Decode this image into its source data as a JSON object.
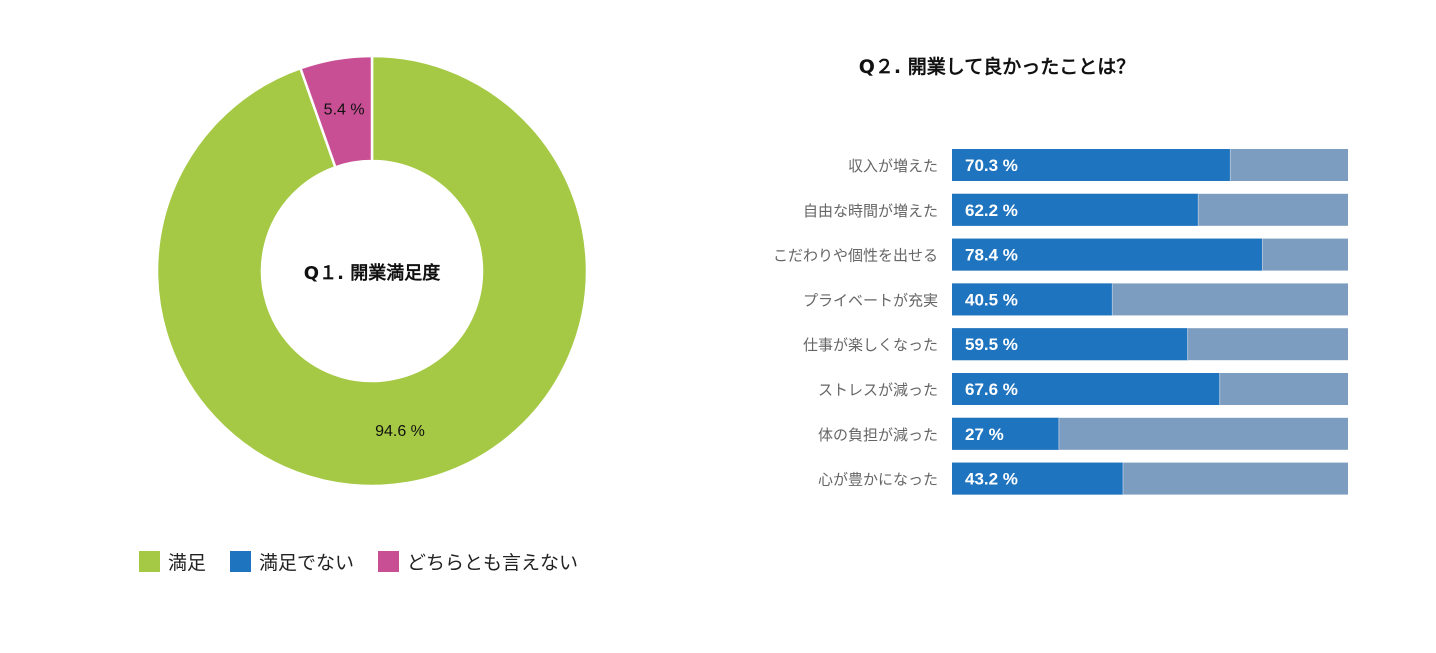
{
  "chart_data": [
    {
      "type": "pie",
      "style": "donut",
      "title": "Q１. 開業満足度",
      "categories": [
        "満足",
        "満足でない",
        "どちらとも言えない"
      ],
      "values": [
        94.6,
        0,
        5.4
      ],
      "data_labels": [
        "94.6 %",
        "",
        "5.4 %"
      ],
      "colors": [
        "#a5c945",
        "#1f74bf",
        "#c94f95"
      ],
      "legend": "bottom"
    },
    {
      "type": "bar",
      "orientation": "horizontal",
      "stacked": true,
      "title": "Q２. 開業して良かったことは？",
      "categories": [
        "収入が増えた",
        "自由な時間が増えた",
        "こだわりや個性を出せる",
        "プライベートが充実",
        "仕事が楽しくなった",
        "ストレスが減った",
        "体の負担が減った",
        "心が豊かになった"
      ],
      "values": [
        70.3,
        62.2,
        78.4,
        40.5,
        59.5,
        67.6,
        27,
        43.2
      ],
      "data_labels": [
        "70.3 %",
        "62.2 %",
        "78.4 %",
        "40.5 %",
        "59.5 %",
        "67.6 %",
        "27 %",
        "43.2 %"
      ],
      "xlim": [
        0,
        100
      ],
      "colors": {
        "value": "#1f74bf",
        "remainder": "#7d9dc0"
      }
    }
  ]
}
